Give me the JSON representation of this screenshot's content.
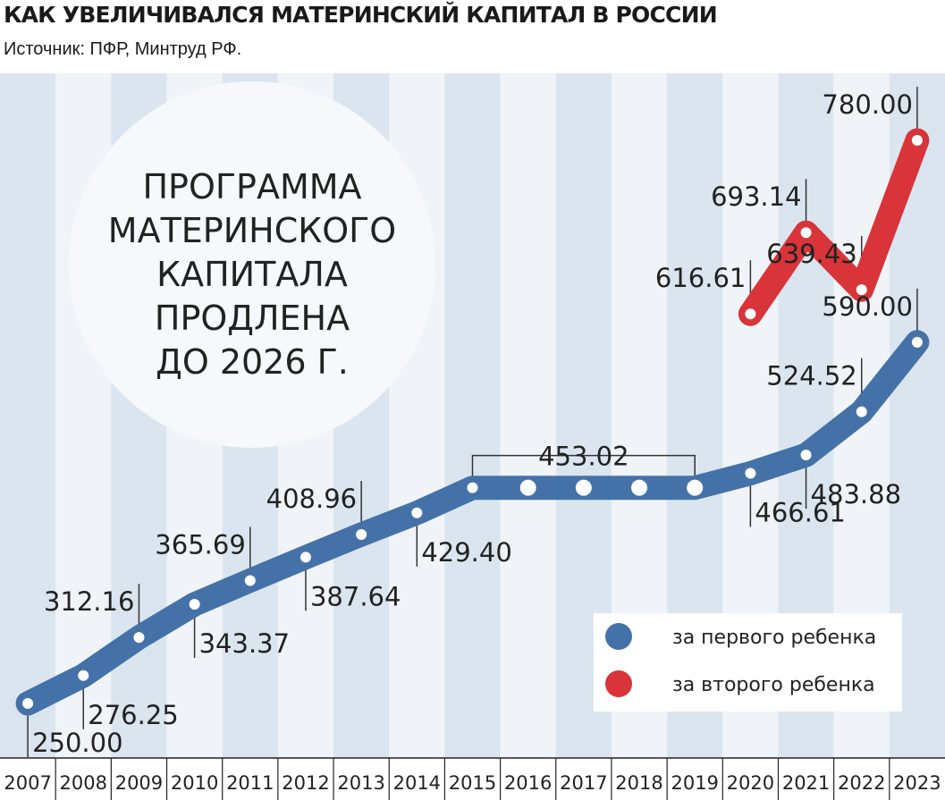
{
  "header": {
    "title": "КАК УВЕЛИЧИВАЛСЯ МАТЕРИНСКИЙ КАПИТАЛ В РОССИИ",
    "source": "Источник: ПФР, Минтруд РФ."
  },
  "callout": {
    "lines": [
      "ПРОГРАММА",
      "МАТЕРИНСКОГО",
      "КАПИТАЛА",
      "ПРОДЛЕНА",
      "ДО 2026 Г."
    ]
  },
  "chart_data": {
    "type": "line",
    "title": "КАК УВЕЛИЧИВАЛСЯ МАТЕРИНСКИЙ КАПИТАЛ В РОССИИ",
    "x": [
      "2007",
      "2008",
      "2009",
      "2010",
      "2011",
      "2012",
      "2013",
      "2014",
      "2015",
      "2016",
      "2017",
      "2018",
      "2019",
      "2020",
      "2021",
      "2022",
      "2023"
    ],
    "series": [
      {
        "name": "за первого ребенка",
        "color": "#4472a8",
        "values": [
          250.0,
          276.25,
          312.16,
          343.37,
          365.69,
          387.64,
          408.96,
          429.4,
          453.02,
          453.02,
          453.02,
          453.02,
          453.02,
          466.61,
          483.88,
          524.52,
          590.0
        ],
        "labels": [
          "250.00",
          "276.25",
          "312.16",
          "343.37",
          "365.69",
          "387.64",
          "408.96",
          "429.40",
          "453.02",
          "",
          "",
          "",
          "",
          "466.61",
          "483.88",
          "524.52",
          "590.00"
        ]
      },
      {
        "name": "за второго ребенка",
        "color": "#d8343a",
        "values": [
          null,
          null,
          null,
          null,
          null,
          null,
          null,
          null,
          null,
          null,
          null,
          null,
          null,
          616.61,
          693.14,
          639.43,
          780.0
        ],
        "labels": [
          "",
          "",
          "",
          "",
          "",
          "",
          "",
          "",
          "",
          "",
          "",
          "",
          "",
          "616.61",
          "693.14",
          "639.43",
          "780.00"
        ]
      }
    ],
    "legend": {
      "position": "bottom-right"
    },
    "grid": false
  }
}
